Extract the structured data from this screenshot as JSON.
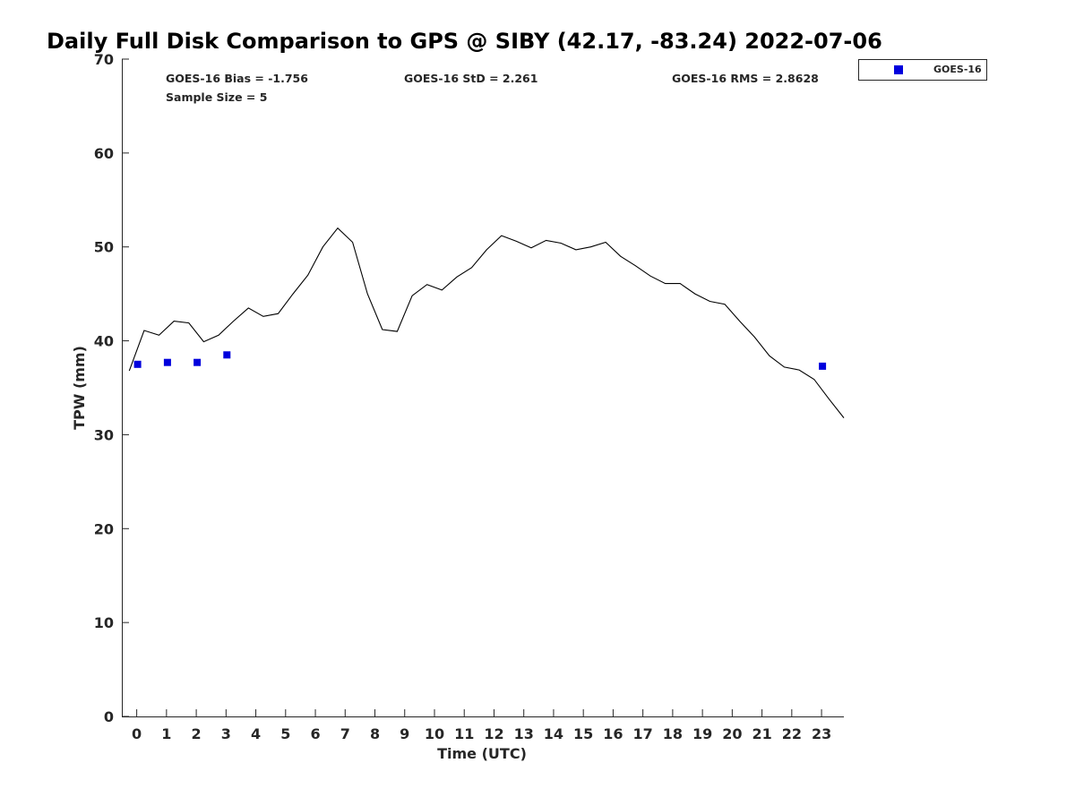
{
  "chart_data": {
    "type": "scatter",
    "title": "Daily Full Disk Comparison to GPS @ SIBY (42.17, -83.24) 2022-07-06",
    "xlabel": "Time (UTC)",
    "ylabel": "TPW (mm)",
    "xlim": [
      -0.5,
      23.75
    ],
    "ylim": [
      0,
      70
    ],
    "x_ticks": [
      0,
      1,
      2,
      3,
      4,
      5,
      6,
      7,
      8,
      9,
      10,
      11,
      12,
      13,
      14,
      15,
      16,
      17,
      18,
      19,
      20,
      21,
      22,
      23
    ],
    "y_ticks": [
      0,
      10,
      20,
      30,
      40,
      50,
      60,
      70
    ],
    "grid": false,
    "legend": {
      "placement": "top-right outside",
      "entries": [
        "GOES-16"
      ]
    },
    "stats": {
      "bias": "GOES-16 Bias = -1.756",
      "std": "GOES-16 StD = 2.261",
      "rms": "GOES-16 RMS = 2.8628",
      "sample": "Sample Size = 5"
    },
    "gps_line": {
      "color": "#000000",
      "x": [
        -0.25,
        0.25,
        0.75,
        1.25,
        1.75,
        2.25,
        2.75,
        3.25,
        3.75,
        4.25,
        4.75,
        5.25,
        5.75,
        6.25,
        6.75,
        7.25,
        7.75,
        8.25,
        8.75,
        9.25,
        9.75,
        10.25,
        10.75,
        11.25,
        11.75,
        12.25,
        12.75,
        13.25,
        13.75,
        14.25,
        14.75,
        15.25,
        15.75,
        16.25,
        16.75,
        17.25,
        17.75,
        18.25,
        18.75,
        19.25,
        19.75,
        20.25,
        20.75,
        21.25,
        21.75,
        22.25,
        22.75,
        23.25,
        23.75
      ],
      "y": [
        36.8,
        41.1,
        40.6,
        42.1,
        41.9,
        39.9,
        40.6,
        42.1,
        43.5,
        42.6,
        42.9,
        45.0,
        47.0,
        50.0,
        52.0,
        50.5,
        45.0,
        41.2,
        41.0,
        44.8,
        46.0,
        45.4,
        46.8,
        47.8,
        49.7,
        51.2,
        50.6,
        49.9,
        50.7,
        50.4,
        49.7,
        50.0,
        50.5,
        49.0,
        48.0,
        46.9,
        46.1,
        46.1,
        45.0,
        44.2,
        43.9,
        42.1,
        40.4,
        38.4,
        37.2,
        36.9,
        35.9,
        33.8,
        31.8
      ]
    },
    "series": [
      {
        "name": "GOES-16",
        "color": "#0000dd",
        "marker": "square",
        "x": [
          0.03,
          1.03,
          2.03,
          3.03,
          23.03
        ],
        "y": [
          37.5,
          37.7,
          37.7,
          38.5,
          37.3
        ]
      }
    ]
  }
}
